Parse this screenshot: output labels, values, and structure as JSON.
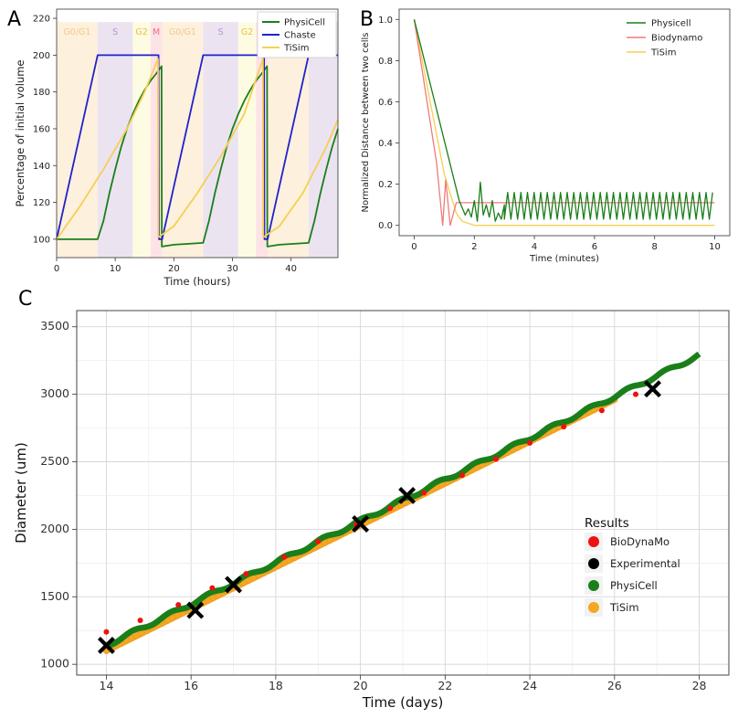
{
  "panels": {
    "a": "A",
    "b": "B",
    "c": "C"
  },
  "chart_data": [
    {
      "id": "A",
      "type": "line",
      "xlabel": "Time (hours)",
      "ylabel": "Percentage of initial volume",
      "xlim": [
        0,
        48
      ],
      "ylim": [
        90,
        225
      ],
      "xticks": [
        0,
        10,
        20,
        30,
        40
      ],
      "yticks": [
        100,
        120,
        140,
        160,
        180,
        200,
        220
      ],
      "legend": "top-right",
      "grid": false,
      "phases": [
        {
          "label": "G0/G1",
          "start": 0,
          "end": 7,
          "color": "#fdf0dd",
          "text_color": "#f3c98a"
        },
        {
          "label": "S",
          "start": 7,
          "end": 13,
          "color": "#ece3f1",
          "text_color": "#c090cf"
        },
        {
          "label": "G2",
          "start": 13,
          "end": 16,
          "color": "#fefbe3",
          "text_color": "#e9c332"
        },
        {
          "label": "M",
          "start": 16,
          "end": 18,
          "color": "#fde3e6",
          "text_color": "#ef6f84"
        },
        {
          "label": "G0/G1",
          "start": 18,
          "end": 25,
          "color": "#fdf0dd",
          "text_color": "#f3c98a"
        },
        {
          "label": "S",
          "start": 25,
          "end": 31,
          "color": "#ece3f1",
          "text_color": "#c090cf"
        },
        {
          "label": "G2",
          "start": 31,
          "end": 34,
          "color": "#fefbe3",
          "text_color": "#e9c332"
        },
        {
          "label": "",
          "start": 34,
          "end": 36,
          "color": "#fde3e6",
          "text_color": "#ef6f84"
        },
        {
          "label": "",
          "start": 36,
          "end": 43,
          "color": "#fdf0dd",
          "text_color": "#f3c98a"
        },
        {
          "label": "",
          "start": 43,
          "end": 48,
          "color": "#ece3f1",
          "text_color": "#c090cf"
        }
      ],
      "series": [
        {
          "name": "PhysiCell",
          "color": "#1a7f1a",
          "x": [
            0,
            7,
            8,
            9,
            10,
            11,
            12,
            13,
            14,
            15,
            16,
            17,
            17.9,
            17.95,
            18,
            20,
            25,
            26,
            27,
            28,
            29,
            30,
            31,
            32,
            33,
            34,
            35,
            35.9,
            35.95,
            36,
            38,
            43,
            44,
            45,
            46,
            47,
            48
          ],
          "y": [
            100,
            100,
            110,
            125,
            138,
            150,
            160,
            168,
            175,
            181,
            186,
            190,
            194,
            96,
            96,
            97,
            98,
            110,
            125,
            138,
            150,
            160,
            168,
            175,
            181,
            186,
            190,
            194,
            96,
            96,
            97,
            98,
            110,
            125,
            138,
            150,
            160
          ]
        },
        {
          "name": "Chaste",
          "color": "#1f22cc",
          "x": [
            0,
            7,
            17.4,
            17.45,
            18,
            25,
            35.4,
            35.45,
            36,
            43,
            48
          ],
          "y": [
            100,
            200,
            200,
            100,
            100,
            200,
            200,
            100,
            100,
            200,
            200
          ]
        },
        {
          "name": "TiSim",
          "color": "#f5cf52",
          "x": [
            0,
            4,
            8,
            12,
            15,
            17.3,
            17.35,
            20,
            24,
            28,
            32,
            35.2,
            35.25,
            38,
            42,
            46,
            48
          ],
          "y": [
            100,
            118,
            138,
            160,
            180,
            198,
            101,
            107,
            125,
            145,
            168,
            198,
            101,
            107,
            125,
            150,
            165
          ]
        }
      ]
    },
    {
      "id": "B",
      "type": "line",
      "xlabel": "Time (minutes)",
      "ylabel": "Normalized Distance between two cells",
      "xlim": [
        -0.5,
        10.5
      ],
      "ylim": [
        -0.05,
        1.05
      ],
      "xticks": [
        0,
        2,
        4,
        6,
        8,
        10
      ],
      "yticks": [
        0.0,
        0.2,
        0.4,
        0.6,
        0.8,
        1.0
      ],
      "legend": "top-right",
      "grid": false,
      "series": [
        {
          "name": "Physicell",
          "color": "#1a7f1a",
          "x": [
            0,
            1.5,
            1.7,
            1.8,
            1.9,
            2.0,
            2.1,
            2.2,
            2.3,
            2.4,
            2.5,
            2.6,
            2.7,
            2.8,
            2.9,
            3.0,
            10
          ],
          "y": [
            1.0,
            0.12,
            0.05,
            0.08,
            0.04,
            0.12,
            0.02,
            0.21,
            0.05,
            0.1,
            0.04,
            0.12,
            0.02,
            0.06,
            0.03,
            0.1,
            0.18
          ],
          "oscillation": {
            "from": 3.0,
            "to": 10.0,
            "period": 0.22,
            "low": 0.03,
            "high": 0.16
          }
        },
        {
          "name": "Biodynamo",
          "color": "#ef7b7b",
          "x": [
            0,
            0.75,
            0.95,
            1.05,
            1.2,
            1.4,
            10
          ],
          "y": [
            1.0,
            0.3,
            0.0,
            0.22,
            0.0,
            0.11,
            0.11
          ]
        },
        {
          "name": "TiSim",
          "color": "#f5cf52",
          "x": [
            0,
            1.0,
            1.4,
            1.6,
            2.0,
            10
          ],
          "y": [
            1.0,
            0.25,
            0.06,
            0.02,
            0.0,
            0.0
          ]
        }
      ]
    },
    {
      "id": "C",
      "type": "scatter",
      "xlabel": "Time (days)",
      "ylabel": "Diameter (um)",
      "xlim": [
        13.3,
        28.7
      ],
      "ylim": [
        920,
        3620
      ],
      "xticks": [
        14,
        16,
        18,
        20,
        22,
        24,
        26,
        28
      ],
      "yticks": [
        1000,
        1500,
        2000,
        2500,
        3000,
        3500
      ],
      "legend_title": "Results",
      "legend": "right",
      "grid": true,
      "series": [
        {
          "name": "BioDynaMo",
          "color": "#ee1111",
          "marker": "dot",
          "x": [
            14.0,
            14.8,
            15.7,
            16.5,
            17.3,
            18.2,
            19.0,
            19.9,
            20.7,
            21.5,
            22.4,
            23.2,
            24.0,
            24.8,
            25.7,
            26.5
          ],
          "y": [
            1240,
            1325,
            1440,
            1565,
            1670,
            1795,
            1910,
            2035,
            2155,
            2270,
            2400,
            2520,
            2640,
            2760,
            2880,
            3000
          ]
        },
        {
          "name": "Experimental",
          "color": "#000000",
          "marker": "x",
          "x": [
            14.0,
            16.1,
            17.0,
            20.0,
            21.1,
            26.9
          ],
          "y": [
            1140,
            1400,
            1590,
            2040,
            2250,
            3040
          ]
        },
        {
          "name": "PhysiCell",
          "color": "#1a7f1a",
          "marker": "thick-line",
          "x": [
            14.0,
            28.0
          ],
          "y": [
            1140,
            3290
          ]
        },
        {
          "name": "TiSim",
          "color": "#f5a623",
          "marker": "thick-line",
          "x": [
            14.0,
            26.0
          ],
          "y": [
            1100,
            2960
          ]
        }
      ]
    }
  ]
}
